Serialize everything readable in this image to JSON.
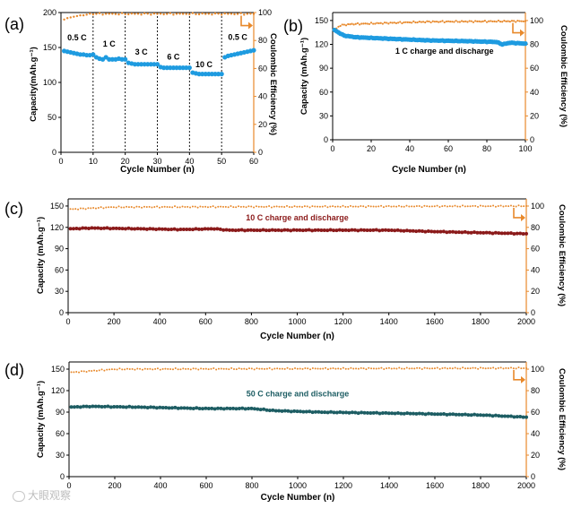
{
  "watermark": "大眼观察",
  "colors": {
    "orange": "#e8892b",
    "blue": "#1e9be0",
    "darkred": "#8b1a1a",
    "teal": "#1d5d63",
    "black": "#111111"
  },
  "chart_data": [
    {
      "panel": "(a)",
      "type": "scatter",
      "xlabel": "Cycle Number (n)",
      "ylabel": "Capacity(mAh.g⁻¹)",
      "y2label": "Coulombic Efficiency (%)",
      "xlim": [
        0,
        60
      ],
      "ylim": [
        0,
        200
      ],
      "y2lim": [
        0,
        100
      ],
      "xticks": [
        0,
        10,
        20,
        30,
        40,
        50,
        60
      ],
      "yticks": [
        0,
        50,
        100,
        150,
        200
      ],
      "y2ticks": [
        0,
        20,
        40,
        60,
        80,
        100
      ],
      "vlines": [
        10,
        20,
        30,
        40,
        50
      ],
      "annotations": [
        {
          "text": "0.5 C",
          "x": 5,
          "y": 160
        },
        {
          "text": "1 C",
          "x": 15,
          "y": 151
        },
        {
          "text": "3 C",
          "x": 25,
          "y": 140
        },
        {
          "text": "6 C",
          "x": 35,
          "y": 133
        },
        {
          "text": "10 C",
          "x": 44.5,
          "y": 122
        },
        {
          "text": "0.5 C",
          "x": 55,
          "y": 161
        }
      ],
      "capacity_series": {
        "name": "Capacity",
        "color": "#1e9be0",
        "segments": [
          {
            "x_start": 1,
            "x_end": 10,
            "y": [
              145,
              144,
              143,
              142,
              141,
              140,
              140,
              139,
              139,
              140
            ]
          },
          {
            "x_start": 11,
            "x_end": 20,
            "y": [
              136,
              134,
              133,
              136,
              133,
              133,
              133,
              134,
              133,
              133
            ]
          },
          {
            "x_start": 21,
            "x_end": 30,
            "y": [
              128,
              127,
              126,
              126,
              126,
              126,
              126,
              126,
              126,
              126
            ]
          },
          {
            "x_start": 31,
            "x_end": 40,
            "y": [
              122,
              121,
              121,
              121,
              121,
              121,
              121,
              121,
              121,
              121
            ]
          },
          {
            "x_start": 41,
            "x_end": 50,
            "y": [
              114,
              113,
              112,
              112,
              112,
              112,
              112,
              112,
              112,
              112
            ]
          },
          {
            "x_start": 51,
            "x_end": 60,
            "y": [
              136,
              138,
              139,
              140,
              141,
              142,
              143,
              144,
              145,
              146
            ]
          }
        ]
      },
      "efficiency_series": {
        "name": "Coulombic Efficiency",
        "color": "#e8892b",
        "x_start": 1,
        "x_end": 60,
        "typical": 99,
        "first": [
          95,
          96,
          96.5,
          97,
          97.5,
          98,
          98,
          98.5
        ]
      }
    },
    {
      "panel": "(b)",
      "type": "scatter",
      "xlabel": "Cycle Number (n)",
      "ylabel": "Capacity (mAh.g⁻¹)",
      "y2label": "Coulombic Efficiency (%)",
      "xlim": [
        0,
        100
      ],
      "ylim": [
        0,
        160
      ],
      "y2lim": [
        0,
        106.7
      ],
      "xticks": [
        0,
        20,
        40,
        60,
        80,
        100
      ],
      "yticks": [
        0,
        30,
        60,
        90,
        120,
        150
      ],
      "y2ticks": [
        0,
        20,
        40,
        60,
        80,
        100
      ],
      "annotations": [
        {
          "text": "1 C charge and discharge",
          "x": 58,
          "y": 108
        }
      ],
      "capacity_series": {
        "name": "Capacity",
        "color": "#1e9be0",
        "x_start": 1,
        "x_end": 100,
        "keypoints": [
          [
            1,
            138
          ],
          [
            3,
            135
          ],
          [
            6,
            131
          ],
          [
            12,
            129
          ],
          [
            30,
            127
          ],
          [
            50,
            125
          ],
          [
            70,
            124
          ],
          [
            85,
            123
          ],
          [
            88,
            120
          ],
          [
            92,
            122
          ],
          [
            100,
            121
          ]
        ]
      },
      "efficiency_series": {
        "name": "Coulombic Efficiency",
        "color": "#e8892b",
        "x_start": 1,
        "x_end": 100,
        "keypoints": [
          [
            1,
            92
          ],
          [
            4,
            96
          ],
          [
            10,
            97
          ],
          [
            50,
            99
          ],
          [
            100,
            99.5
          ]
        ]
      }
    },
    {
      "panel": "(c)",
      "type": "scatter",
      "xlabel": "Cycle Number (n)",
      "ylabel": "Capacity (mAh.g⁻¹)",
      "y2label": "Coulombic Efficiency (%)",
      "xlim": [
        0,
        2000
      ],
      "ylim": [
        0,
        160
      ],
      "y2lim": [
        0,
        106.7
      ],
      "xticks": [
        0,
        200,
        400,
        600,
        800,
        1000,
        1200,
        1400,
        1600,
        1800,
        2000
      ],
      "yticks": [
        0,
        30,
        60,
        90,
        120,
        150
      ],
      "y2ticks": [
        0,
        20,
        40,
        60,
        80,
        100
      ],
      "annotations": [
        {
          "text": "10 C charge and discharge",
          "x": 1000,
          "y": 130
        }
      ],
      "capacity_series": {
        "name": "Capacity",
        "color": "#8b1a1a",
        "x_start": 10,
        "x_end": 2000,
        "keypoints": [
          [
            10,
            118
          ],
          [
            100,
            119
          ],
          [
            300,
            118
          ],
          [
            500,
            117
          ],
          [
            640,
            118
          ],
          [
            700,
            116
          ],
          [
            1000,
            116
          ],
          [
            1400,
            116
          ],
          [
            1600,
            114
          ],
          [
            2000,
            111
          ]
        ]
      },
      "efficiency_series": {
        "name": "Coulombic Efficiency",
        "color": "#e8892b",
        "x_start": 10,
        "x_end": 2000,
        "keypoints": [
          [
            10,
            97
          ],
          [
            200,
            99
          ],
          [
            2000,
            100
          ]
        ]
      }
    },
    {
      "panel": "(d)",
      "type": "scatter",
      "xlabel": "Cycle Number (n)",
      "ylabel": "Capacity (mAh.g⁻¹)",
      "y2label": "Coulombic Efficiency (%)",
      "xlim": [
        0,
        2000
      ],
      "ylim": [
        0,
        160
      ],
      "y2lim": [
        0,
        106.7
      ],
      "xticks": [
        0,
        200,
        400,
        600,
        800,
        1000,
        1200,
        1400,
        1600,
        1800,
        2000
      ],
      "yticks": [
        0,
        30,
        60,
        90,
        120,
        150
      ],
      "y2ticks": [
        0,
        20,
        40,
        60,
        80,
        100
      ],
      "annotations": [
        {
          "text": "50 C charge and discharge",
          "x": 1000,
          "y": 112
        }
      ],
      "capacity_series": {
        "name": "Capacity",
        "color": "#1d5d63",
        "x_start": 10,
        "x_end": 2000,
        "keypoints": [
          [
            10,
            97
          ],
          [
            100,
            98
          ],
          [
            300,
            97
          ],
          [
            600,
            95
          ],
          [
            800,
            95
          ],
          [
            900,
            92
          ],
          [
            1100,
            90
          ],
          [
            1500,
            88
          ],
          [
            1800,
            86
          ],
          [
            2000,
            83
          ]
        ]
      },
      "efficiency_series": {
        "name": "Coulombic Efficiency",
        "color": "#e8892b",
        "x_start": 10,
        "x_end": 2000,
        "keypoints": [
          [
            10,
            97
          ],
          [
            200,
            100
          ],
          [
            2000,
            101
          ]
        ]
      }
    }
  ]
}
